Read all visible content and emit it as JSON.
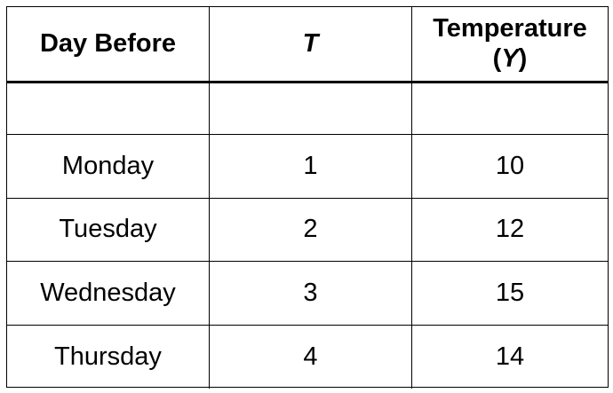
{
  "table": {
    "headers": {
      "day": "Day Before",
      "t": "T",
      "temp_line1": "Temperature",
      "temp_open": "(",
      "temp_symbol": "Y",
      "temp_close": ")"
    },
    "rows": [
      {
        "day": "Monday",
        "t": "1",
        "temp": "10"
      },
      {
        "day": "Tuesday",
        "t": "2",
        "temp": "12"
      },
      {
        "day": "Wednesday",
        "t": "3",
        "temp": "15"
      },
      {
        "day": "Thursday",
        "t": "4",
        "temp": "14"
      }
    ]
  }
}
